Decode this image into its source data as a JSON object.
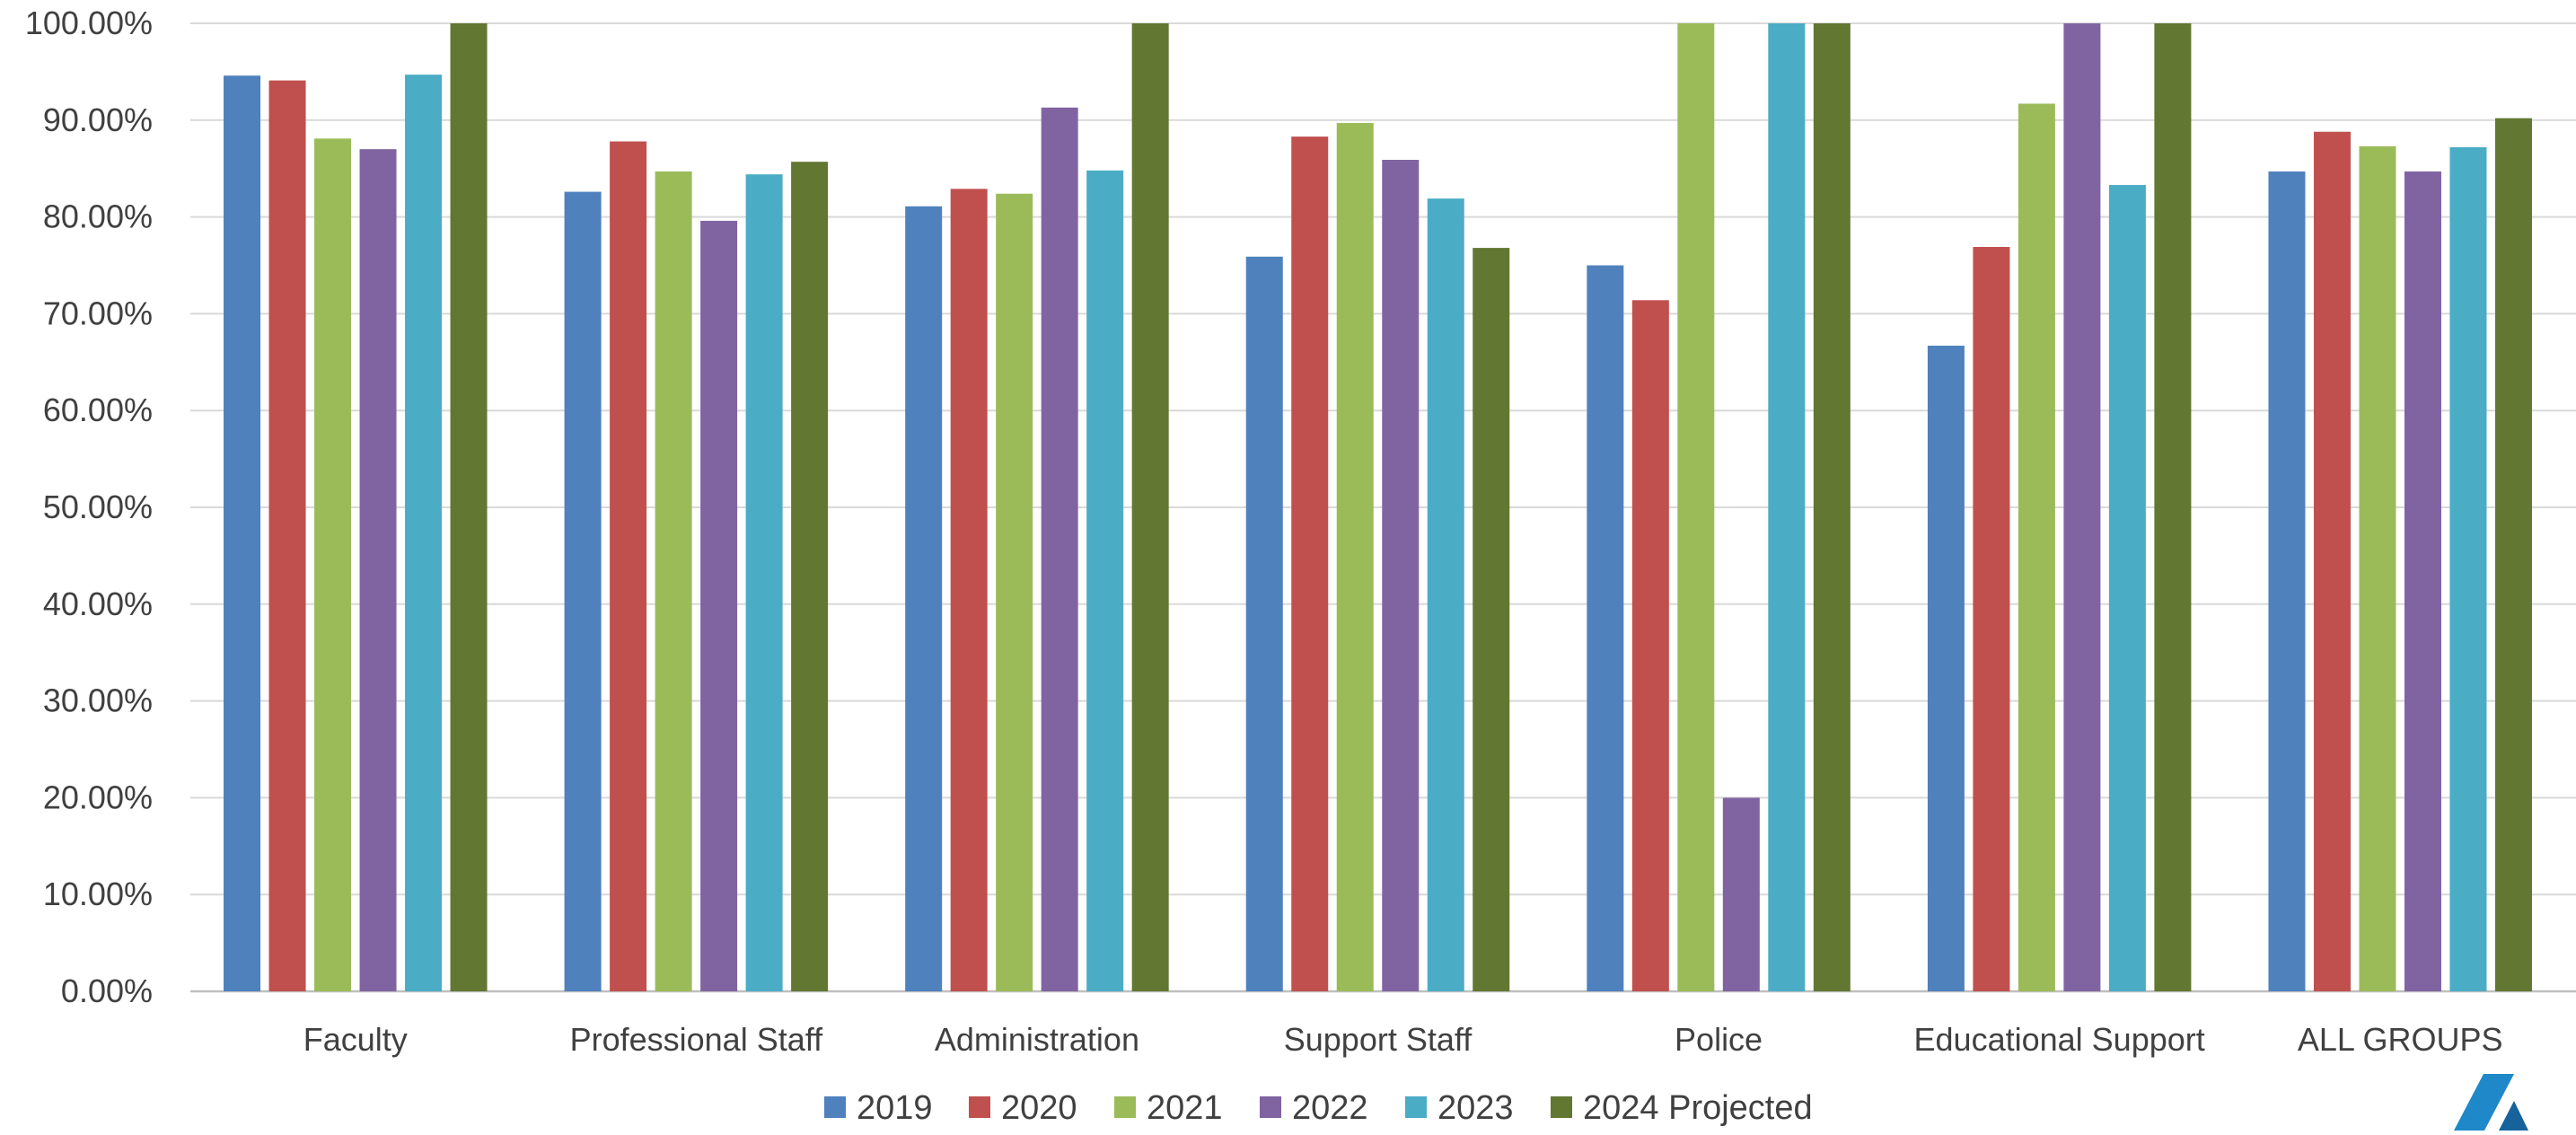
{
  "chart_data": {
    "type": "bar",
    "categories": [
      "Faculty",
      "Professional Staff",
      "Administration",
      "Support Staff",
      "Police",
      "Educational Support",
      "ALL GROUPS"
    ],
    "series": [
      {
        "name": "2019",
        "color": "#4f81bd",
        "values": [
          94.6,
          82.6,
          81.1,
          75.9,
          75.0,
          66.7,
          84.7
        ]
      },
      {
        "name": "2020",
        "color": "#c0504d",
        "values": [
          94.1,
          87.8,
          82.9,
          88.3,
          71.4,
          76.9,
          88.8
        ]
      },
      {
        "name": "2021",
        "color": "#9bbb59",
        "values": [
          88.1,
          84.7,
          82.4,
          89.7,
          100.0,
          91.7,
          87.3
        ]
      },
      {
        "name": "2022",
        "color": "#8064a2",
        "values": [
          87.0,
          79.6,
          91.3,
          85.9,
          20.0,
          100.0,
          84.7
        ]
      },
      {
        "name": "2023",
        "color": "#4bacc6",
        "values": [
          94.7,
          84.4,
          84.8,
          81.9,
          100.0,
          83.3,
          87.2
        ]
      },
      {
        "name": "2024 Projected",
        "color": "#617732",
        "values": [
          100.0,
          85.7,
          100.0,
          76.8,
          100.0,
          100.0,
          90.2
        ]
      }
    ],
    "y_ticks": [
      "0.00%",
      "10.00%",
      "20.00%",
      "30.00%",
      "40.00%",
      "50.00%",
      "60.00%",
      "70.00%",
      "80.00%",
      "90.00%",
      "100.00%"
    ],
    "ylim": [
      0,
      100
    ],
    "title": "",
    "xlabel": "",
    "ylabel": "",
    "grid": true,
    "legend_position": "bottom"
  },
  "logo": {
    "name": "logo-mark-icon",
    "color": "#1e88c8"
  }
}
